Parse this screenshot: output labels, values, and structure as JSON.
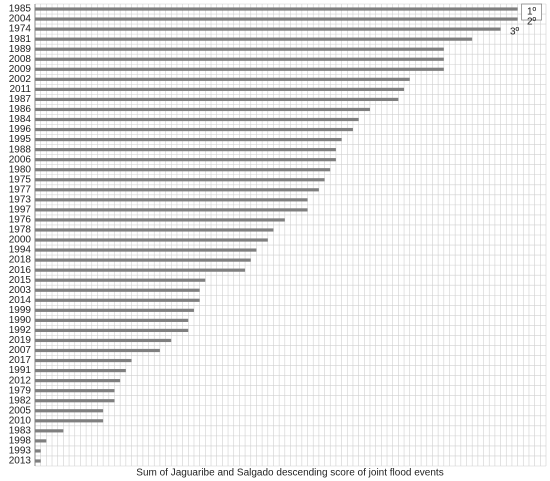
{
  "chart_data": {
    "type": "barh",
    "x_label": "Sum of Jaguaribe and Salgado descending score of joint flood events",
    "categories": [
      "1985",
      "2004",
      "1974",
      "1981",
      "1989",
      "2008",
      "2009",
      "2002",
      "2011",
      "1987",
      "1986",
      "1984",
      "1996",
      "1995",
      "1988",
      "2006",
      "1980",
      "1975",
      "1977",
      "1973",
      "1997",
      "1976",
      "1978",
      "2000",
      "1994",
      "2018",
      "2016",
      "2015",
      "2003",
      "2014",
      "1999",
      "1990",
      "1992",
      "2019",
      "2007",
      "2017",
      "1991",
      "2012",
      "1979",
      "1982",
      "2005",
      "2010",
      "1983",
      "1998",
      "1993",
      "2013"
    ],
    "values": [
      85,
      85,
      82,
      77,
      72,
      72,
      72,
      66,
      65,
      64,
      59,
      57,
      56,
      54,
      53,
      53,
      52,
      51,
      50,
      48,
      48,
      44,
      42,
      41,
      39,
      38,
      37,
      30,
      29,
      29,
      28,
      27,
      27,
      24,
      22,
      17,
      16,
      15,
      14,
      14,
      12,
      12,
      5,
      2,
      1,
      1
    ],
    "color": "#7f7f7f",
    "annotations": [
      "1º",
      "2º",
      "3º"
    ],
    "xlim": [
      0,
      90
    ],
    "xticks": [
      0,
      1,
      2,
      3,
      4,
      5,
      6,
      7,
      8,
      9,
      10,
      11,
      12,
      13,
      14,
      15,
      16,
      17,
      18,
      19,
      20,
      21,
      22,
      23,
      24,
      25,
      26,
      27,
      28,
      29,
      30,
      31,
      32,
      33,
      34,
      35,
      36,
      37,
      38,
      39,
      40,
      41,
      42,
      43,
      44,
      45,
      46,
      47,
      48,
      49,
      50,
      51,
      52,
      53,
      54,
      55,
      56,
      57,
      58,
      59,
      60,
      61,
      62,
      63,
      64,
      65,
      66,
      67,
      68,
      69,
      70,
      71,
      72,
      73,
      74,
      75,
      76,
      77,
      78,
      79,
      80,
      81,
      82,
      83,
      84,
      85,
      86,
      87,
      88,
      89,
      90
    ],
    "grid": true
  }
}
